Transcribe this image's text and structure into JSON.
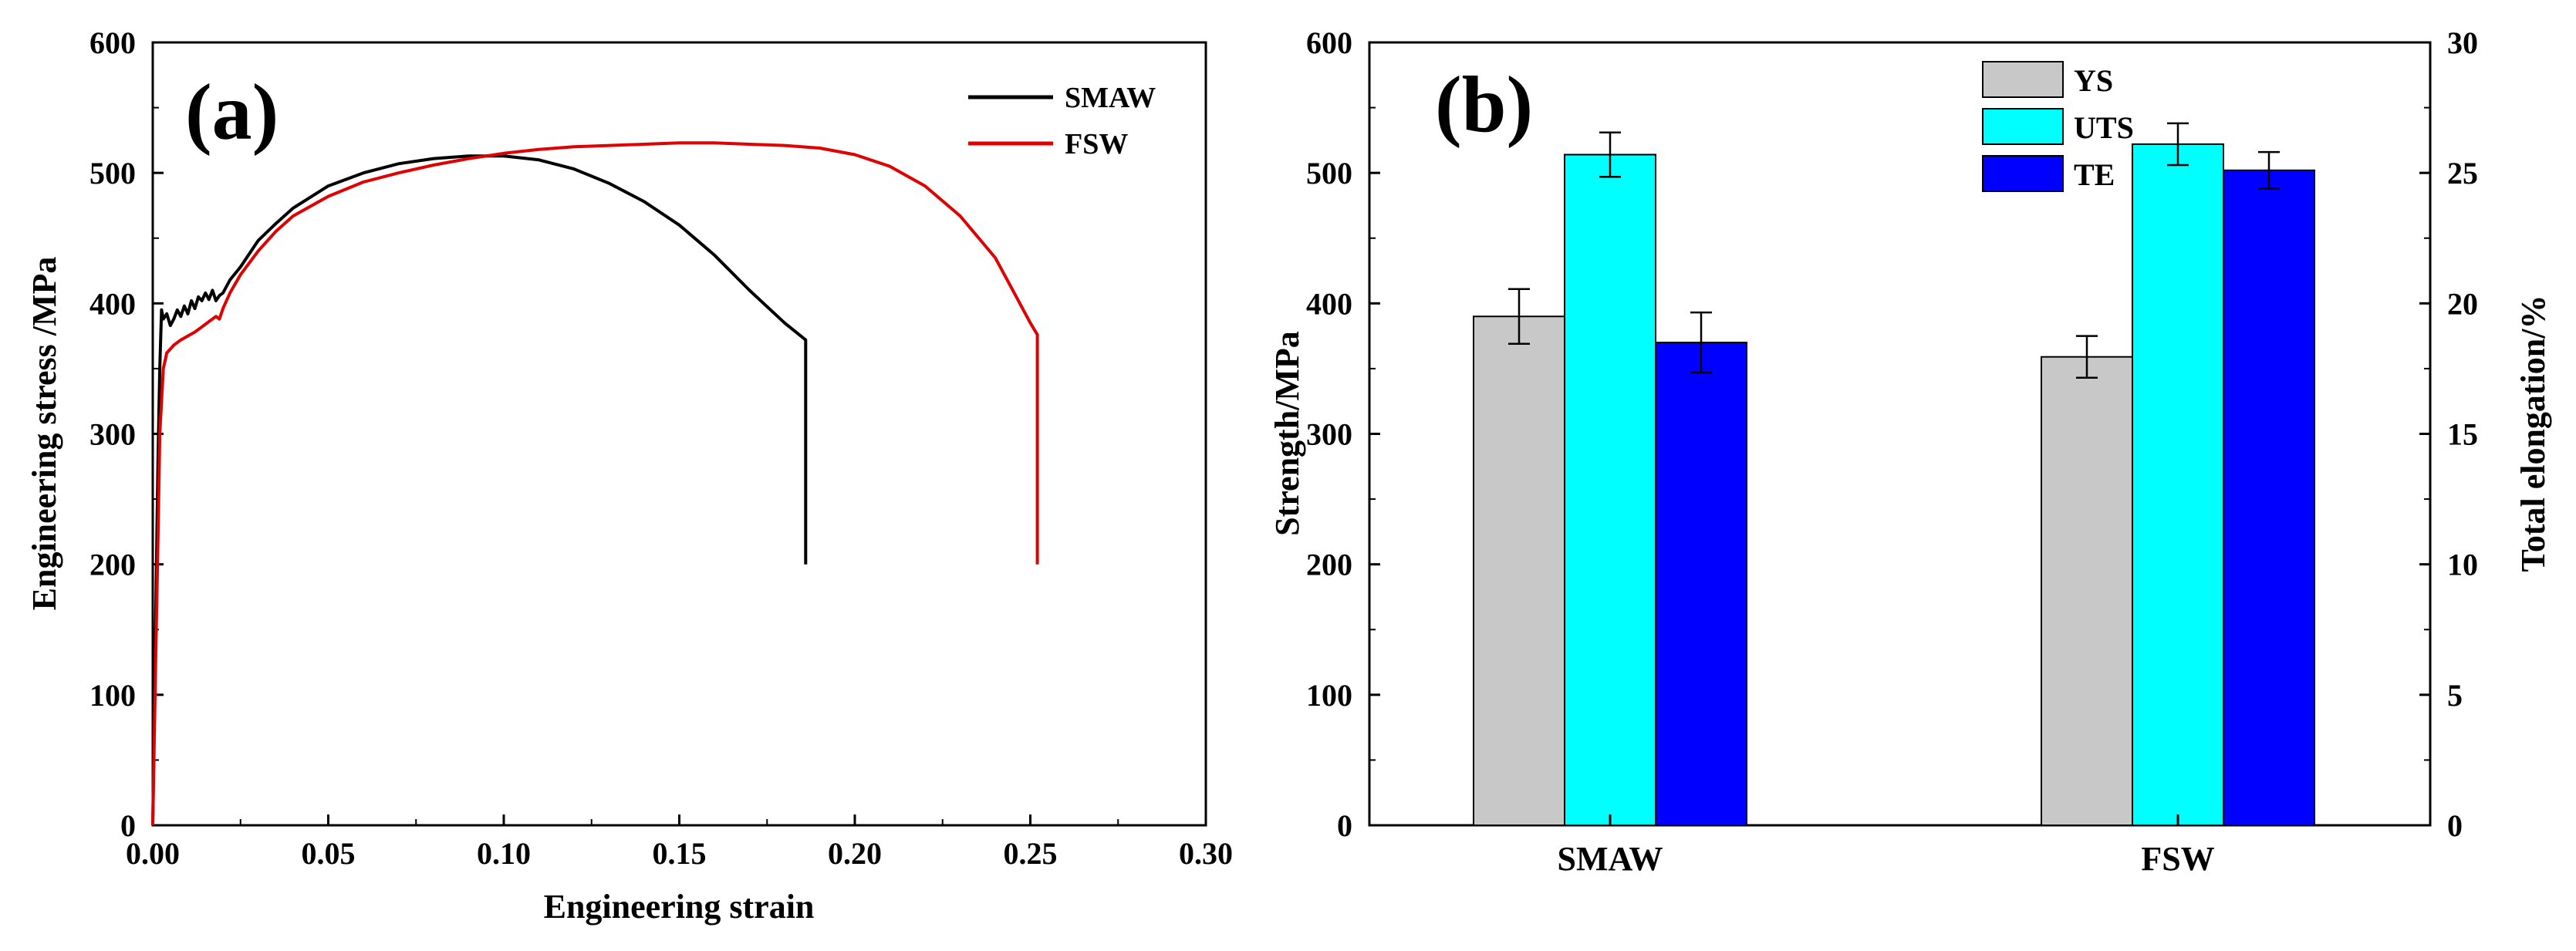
{
  "chart_data": [
    {
      "type": "line",
      "panel_label": "(a)",
      "xlabel": "Engineering strain",
      "ylabel": "Engineering stress /MPa",
      "xlim": [
        0,
        0.3
      ],
      "ylim": [
        0,
        600
      ],
      "xticks": [
        "0.00",
        "0.05",
        "0.10",
        "0.15",
        "0.20",
        "0.25",
        "0.30"
      ],
      "yticks": [
        "0",
        "100",
        "200",
        "300",
        "400",
        "500",
        "600"
      ],
      "legend_position": "top-right",
      "colors": {
        "SMAW": "#000000",
        "FSW": "#e00000"
      },
      "series": [
        {
          "name": "SMAW",
          "x": [
            0,
            0.0008,
            0.0015,
            0.002,
            0.0025,
            0.003,
            0.004,
            0.005,
            0.006,
            0.007,
            0.008,
            0.009,
            0.01,
            0.011,
            0.012,
            0.013,
            0.014,
            0.015,
            0.016,
            0.017,
            0.018,
            0.019,
            0.02,
            0.022,
            0.025,
            0.03,
            0.035,
            0.04,
            0.05,
            0.06,
            0.07,
            0.08,
            0.09,
            0.1,
            0.11,
            0.12,
            0.13,
            0.14,
            0.15,
            0.16,
            0.17,
            0.18,
            0.186,
            0.186
          ],
          "y": [
            0,
            150,
            280,
            350,
            395,
            388,
            392,
            383,
            388,
            395,
            390,
            398,
            392,
            402,
            396,
            405,
            402,
            408,
            403,
            410,
            402,
            406,
            408,
            418,
            428,
            448,
            461,
            473,
            490,
            500,
            507,
            511,
            513,
            513,
            510,
            503,
            492,
            478,
            460,
            437,
            410,
            385,
            372,
            200
          ]
        },
        {
          "name": "FSW",
          "x": [
            0,
            0.0008,
            0.0015,
            0.002,
            0.003,
            0.004,
            0.006,
            0.008,
            0.01,
            0.012,
            0.014,
            0.016,
            0.018,
            0.019,
            0.02,
            0.022,
            0.025,
            0.03,
            0.035,
            0.04,
            0.05,
            0.06,
            0.07,
            0.08,
            0.09,
            0.1,
            0.11,
            0.12,
            0.13,
            0.14,
            0.15,
            0.16,
            0.17,
            0.18,
            0.19,
            0.2,
            0.21,
            0.22,
            0.23,
            0.24,
            0.245,
            0.25,
            0.252,
            0.252
          ],
          "y": [
            0,
            120,
            220,
            300,
            350,
            362,
            368,
            372,
            375,
            378,
            382,
            386,
            390,
            388,
            396,
            408,
            422,
            440,
            455,
            467,
            482,
            493,
            500,
            506,
            511,
            515,
            518,
            520,
            521,
            522,
            523,
            523,
            522,
            521,
            519,
            514,
            505,
            490,
            467,
            435,
            410,
            385,
            376,
            200
          ]
        }
      ]
    },
    {
      "type": "bar",
      "panel_label": "(b)",
      "categories": [
        "SMAW",
        "FSW"
      ],
      "ylabel": "Strength/MPa",
      "y2label": "Total elongation/%",
      "ylim": [
        0,
        600
      ],
      "y2lim": [
        0,
        30
      ],
      "yticks": [
        "0",
        "100",
        "200",
        "300",
        "400",
        "500",
        "600"
      ],
      "y2ticks": [
        "0",
        "5",
        "10",
        "15",
        "20",
        "25",
        "30"
      ],
      "legend_position": "top-center",
      "series": [
        {
          "name": "YS",
          "axis": "left",
          "color": "#c8c8c8",
          "values": [
            390,
            359
          ],
          "errors": [
            21,
            16
          ]
        },
        {
          "name": "UTS",
          "axis": "left",
          "color": "#00ffff",
          "values": [
            514,
            522
          ],
          "errors": [
            17,
            16
          ]
        },
        {
          "name": "TE",
          "axis": "right",
          "color": "#0000ff",
          "values": [
            18.5,
            25.1
          ],
          "errors": [
            1.15,
            0.7
          ]
        }
      ]
    }
  ]
}
